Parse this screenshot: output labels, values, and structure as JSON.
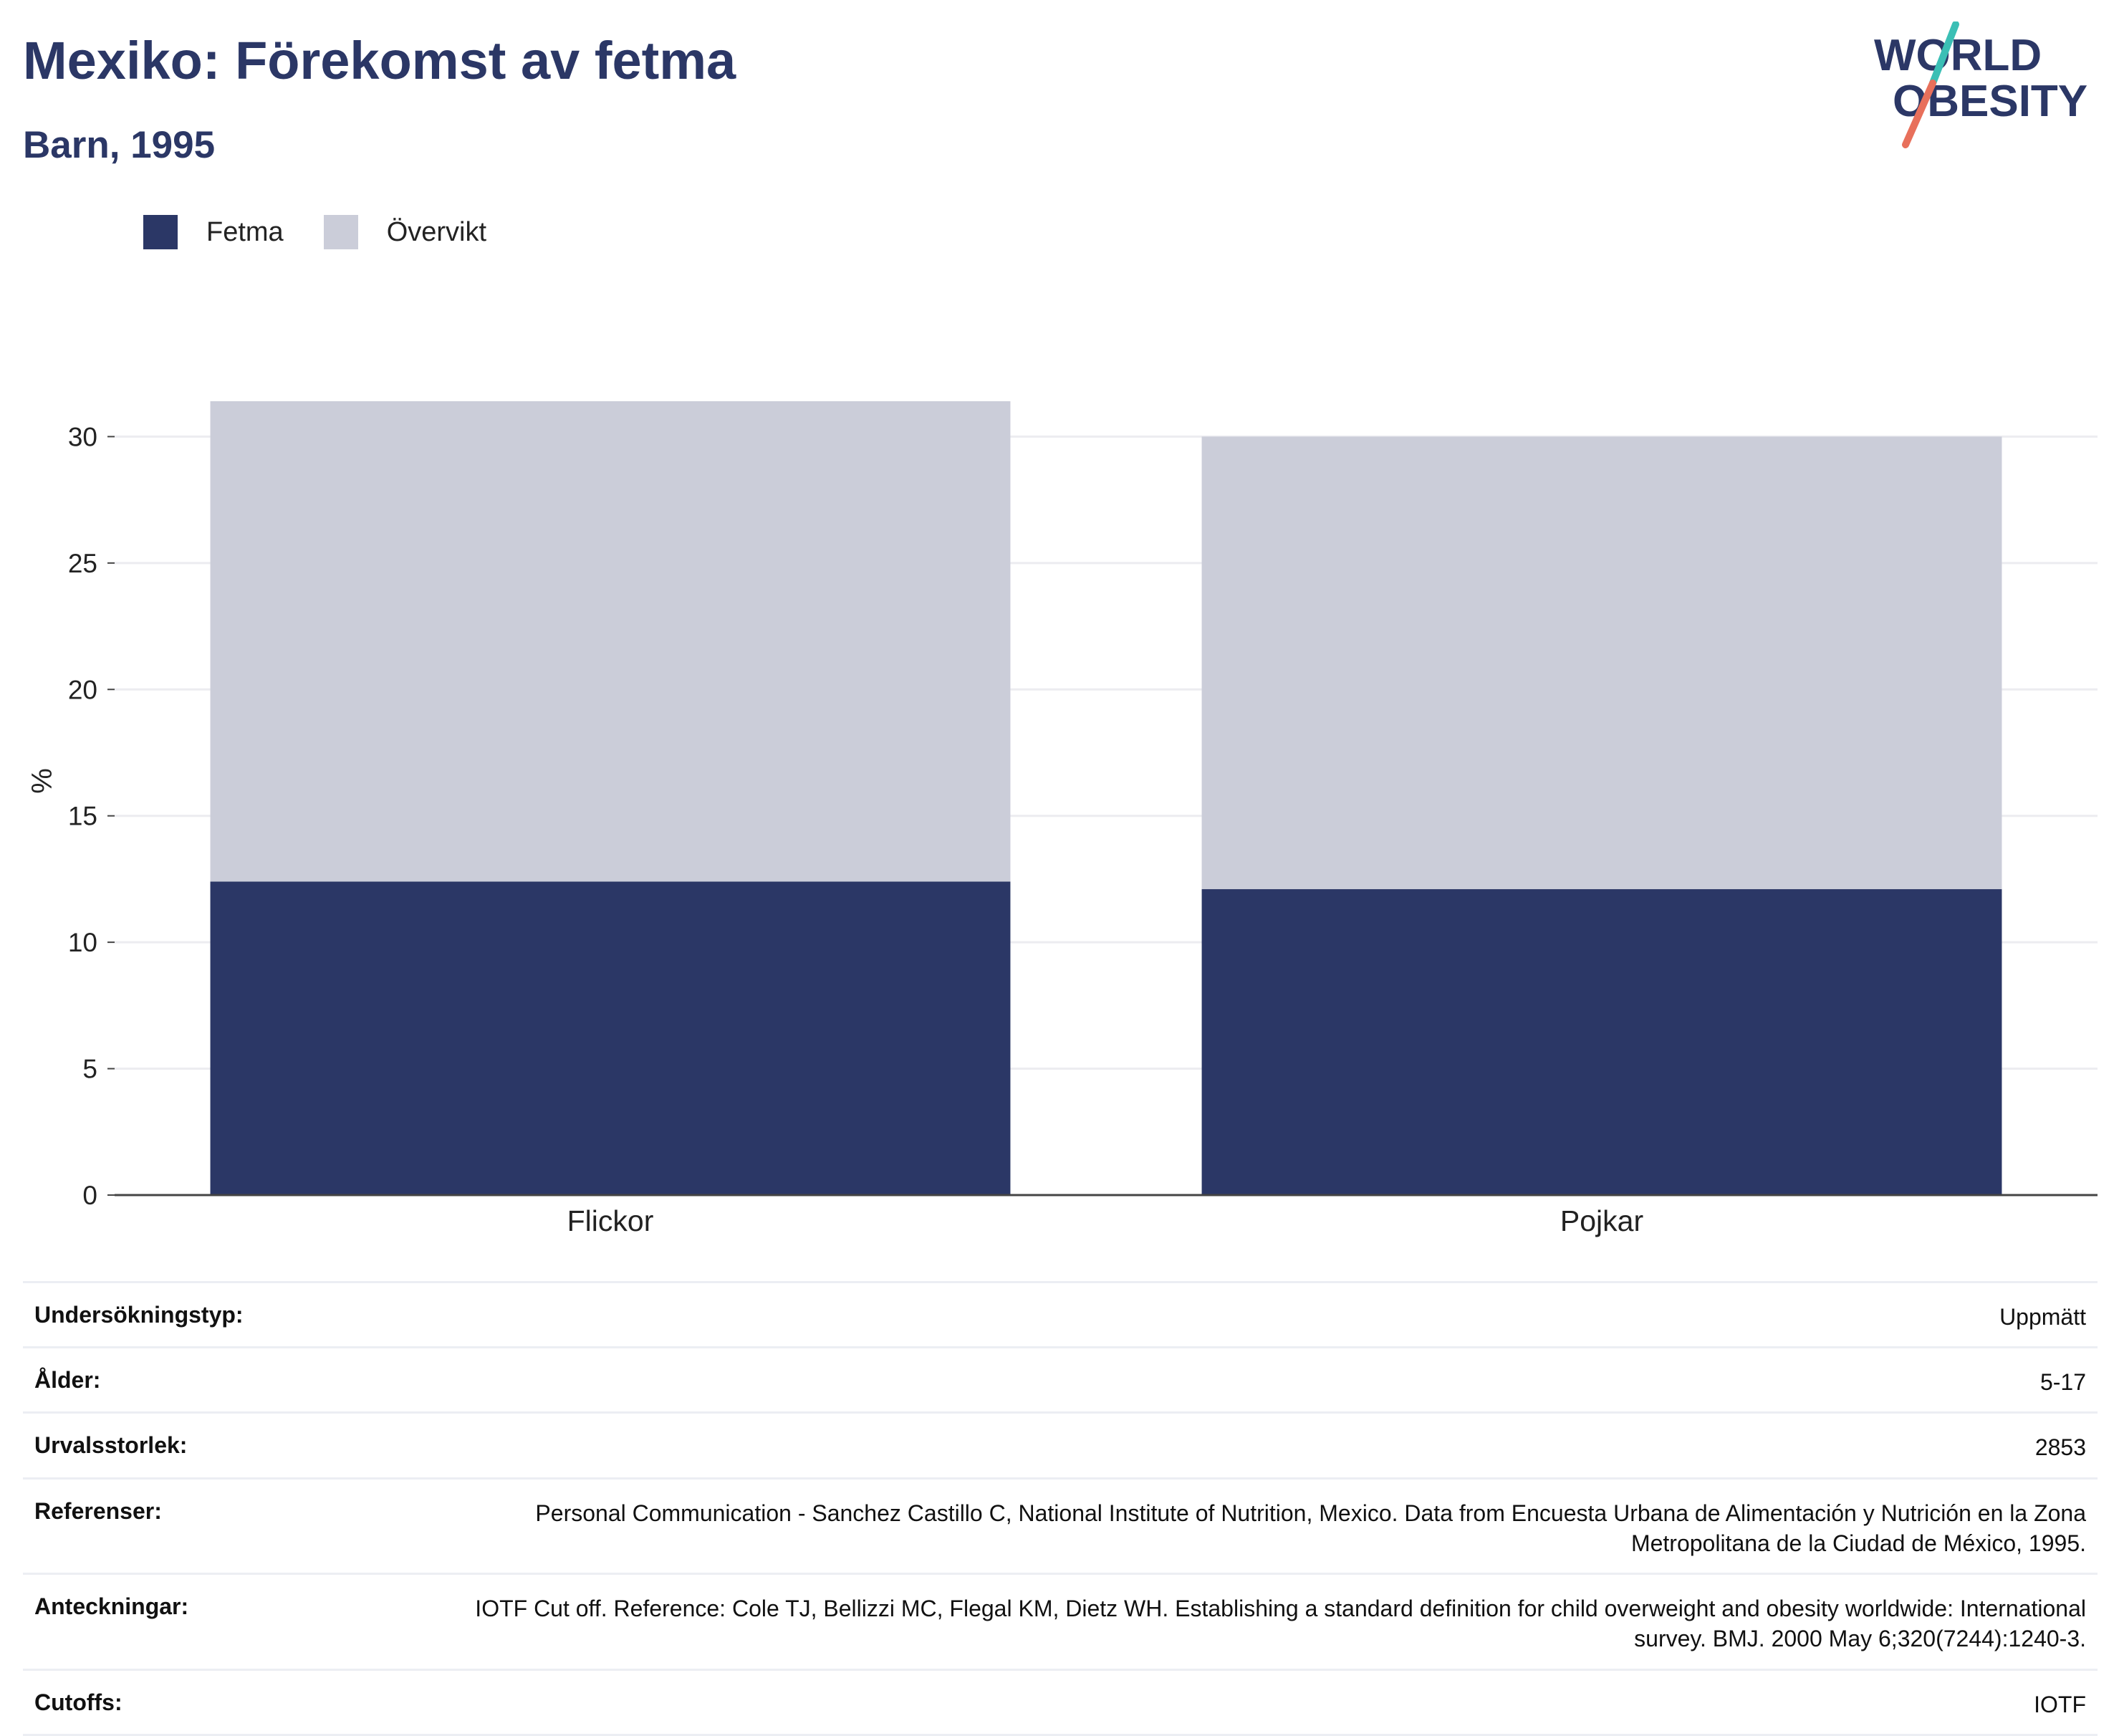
{
  "header": {
    "title": "Mexiko: Förekomst av fetma",
    "subtitle": "Barn, 1995"
  },
  "logo": {
    "text_line1": "WORLD",
    "text_line2": "OBESITY",
    "icon": "world-obesity-logo",
    "colors": {
      "text": "#2b3766",
      "slash_top": "#3bbfb5",
      "slash_bottom": "#e8705b"
    }
  },
  "legend": {
    "items": [
      {
        "label": "Fetma",
        "color": "#2b3766"
      },
      {
        "label": "Övervikt",
        "color": "#cbcdd9"
      }
    ],
    "placement": "top-left"
  },
  "chart_data": {
    "type": "bar",
    "stacked": true,
    "categories": [
      "Flickor",
      "Pojkar"
    ],
    "series": [
      {
        "name": "Fetma",
        "color": "#2b3766",
        "values": [
          12.4,
          12.1
        ]
      },
      {
        "name": "Övervikt",
        "color": "#cbcdd9",
        "values": [
          19.0,
          17.9
        ]
      }
    ],
    "xlabel": "",
    "ylabel": "%",
    "ylim": [
      0,
      31.4
    ],
    "yticks": [
      "0",
      "5",
      "10",
      "15",
      "20",
      "25",
      "30"
    ],
    "grid": true
  },
  "details": {
    "rows": [
      {
        "label": "Undersökningstyp:",
        "value": "Uppmätt"
      },
      {
        "label": "Ålder:",
        "value": "5-17"
      },
      {
        "label": "Urvalsstorlek:",
        "value": "2853"
      },
      {
        "label": "Referenser:",
        "value": "Personal Communication - Sanchez Castillo C, National Institute of Nutrition, Mexico. Data from Encuesta Urbana de Alimentación y Nutrición en la Zona Metropolitana de la Ciudad de México, 1995."
      },
      {
        "label": "Anteckningar:",
        "value": "IOTF Cut off. Reference: Cole TJ, Bellizzi MC, Flegal KM, Dietz WH. Establishing a standard definition for child overweight and obesity worldwide: International survey. BMJ. 2000 May 6;320(7244):1240-3."
      },
      {
        "label": "Cutoffs:",
        "value": "IOTF"
      }
    ]
  }
}
